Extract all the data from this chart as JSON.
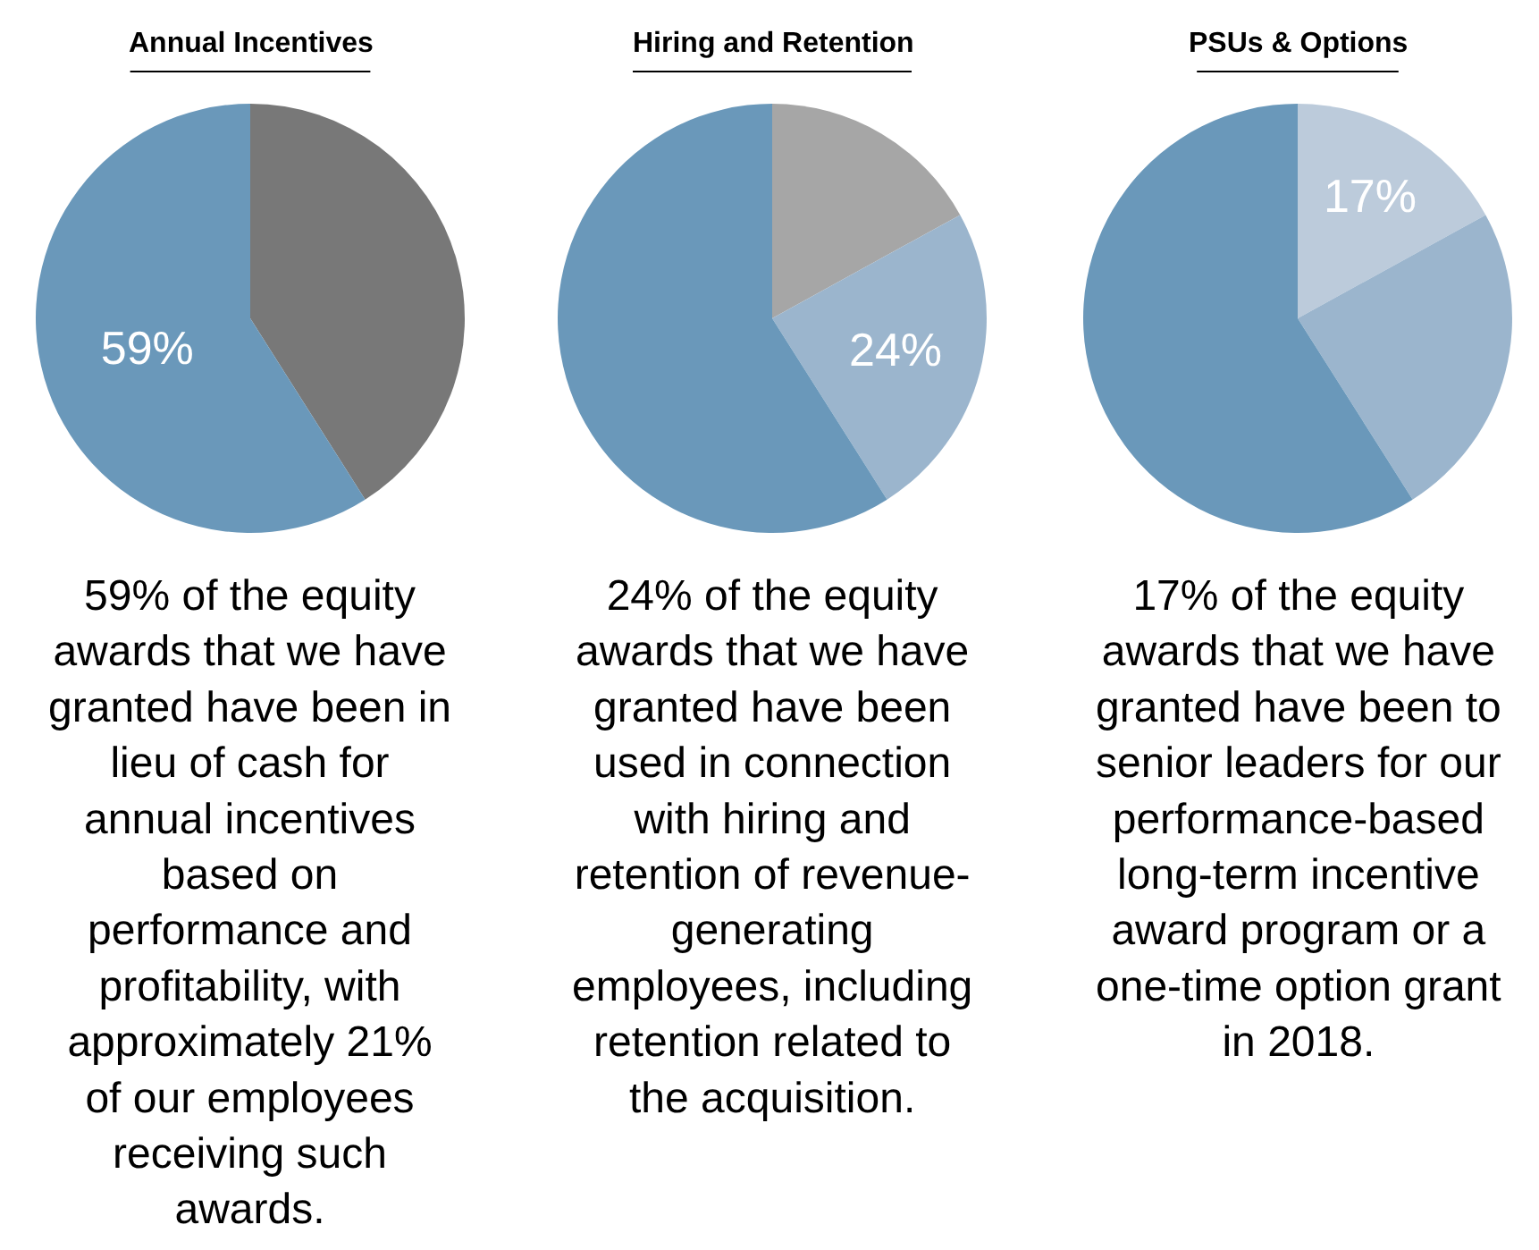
{
  "chart_data": [
    {
      "type": "pie",
      "title": "Annual Incentives",
      "categories": [
        null,
        null
      ],
      "values": [
        41,
        59
      ],
      "colors": [
        "#787878",
        "#6a98ba"
      ],
      "value_labels": [
        null,
        "59%"
      ],
      "annotations": [
        "59% of the equity\nawards that we have\ngranted have been in\nlieu of cash for\nannual incentives\nbased on\nperformance and\nprofitability, with\napproximately 21%\nof our employees\nreceiving such\nawards."
      ]
    },
    {
      "type": "pie",
      "title": "Hiring and Retention",
      "categories": [
        null,
        null,
        null
      ],
      "values": [
        17,
        24,
        59
      ],
      "colors": [
        "#a6a6a6",
        "#9bb5cd",
        "#6a98ba"
      ],
      "value_labels": [
        null,
        "24%",
        null
      ],
      "annotations": [
        "24% of the equity\nawards that we have\ngranted have been\nused in connection\nwith hiring and\nretention of revenue-\ngenerating\nemployees, including\nretention related to\nthe acquisition."
      ]
    },
    {
      "type": "pie",
      "title": "PSUs & Options",
      "categories": [
        null,
        null,
        null
      ],
      "values": [
        17,
        24,
        59
      ],
      "colors": [
        "#bccbdb",
        "#9bb5cd",
        "#6a98ba"
      ],
      "value_labels": [
        "17%",
        null,
        null
      ],
      "annotations": [
        "17% of the equity\nawards that we have\ngranted have been to\nsenior leaders for our\nperformance-based\nlong-term incentive\naward program or a\none-time option grant\nin 2018."
      ]
    }
  ]
}
